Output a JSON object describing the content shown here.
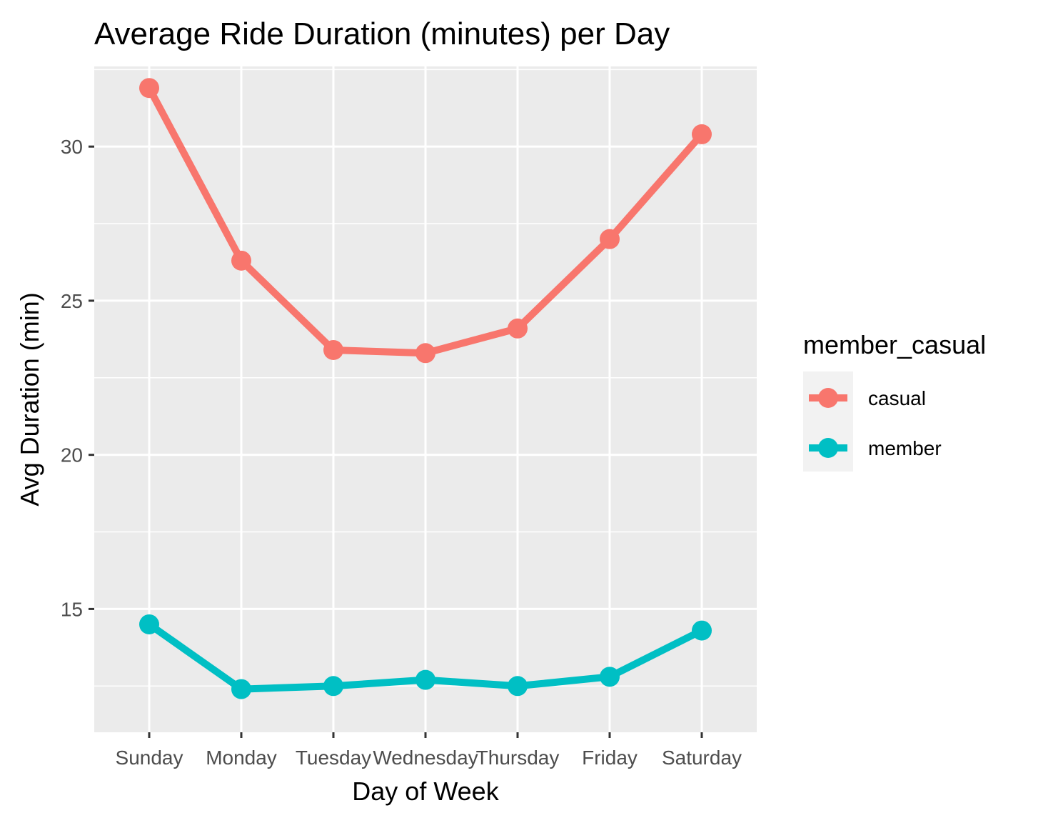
{
  "chart_data": {
    "type": "line",
    "title": "Average Ride Duration (minutes) per Day",
    "xlabel": "Day of Week",
    "ylabel": "Avg Duration (min)",
    "categories": [
      "Sunday",
      "Monday",
      "Tuesday",
      "Wednesday",
      "Thursday",
      "Friday",
      "Saturday"
    ],
    "ylim": [
      11.0,
      32.6
    ],
    "yticks": [
      15,
      20,
      25,
      30
    ],
    "grid": true,
    "legend": {
      "title": "member_casual",
      "position": "right"
    },
    "series": [
      {
        "name": "casual",
        "color": "#F8766D",
        "values": [
          31.9,
          26.3,
          23.4,
          23.3,
          24.1,
          27.0,
          30.4
        ]
      },
      {
        "name": "member",
        "color": "#00BFC4",
        "values": [
          14.5,
          12.4,
          12.5,
          12.7,
          12.5,
          12.8,
          14.3
        ]
      }
    ]
  }
}
